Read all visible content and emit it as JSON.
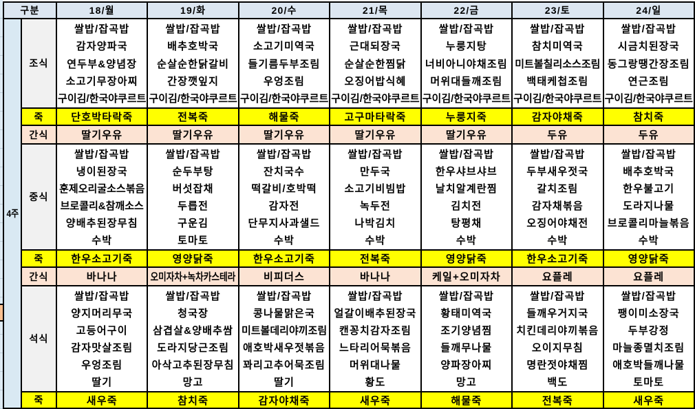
{
  "header": {
    "category_label": "구분",
    "days": [
      "18/월",
      "19/화",
      "20/수",
      "21/목",
      "22/금",
      "23/토",
      "24/일"
    ]
  },
  "week_label": "4주",
  "sections": [
    {
      "label": "조식",
      "items": [
        [
          "쌀밥/잡곡밥",
          "감자양파국",
          "연두부&양념장",
          "소고기무장아찌",
          "구이김/한국야쿠르트"
        ],
        [
          "쌀밥/잡곡밥",
          "배추호박국",
          "순살순한닭갈비",
          "간장깻잎지",
          "구이김/한국야쿠르트"
        ],
        [
          "쌀밥/잡곡밥",
          "소고기미역국",
          "들기름두부조림",
          "우엉조림",
          "구이김/한국야쿠르트"
        ],
        [
          "쌀밥/잡곡밥",
          "근대되장국",
          "순살순한찜닭",
          "오징어밥식혜",
          "구이김/한국야쿠르트"
        ],
        [
          "쌀밥/잡곡밥",
          "누룽지탕",
          "너비아니야채조림",
          "머위대들깨조림",
          "구이김/한국야쿠르트"
        ],
        [
          "쌀밥/잡곡밥",
          "참치미역국",
          "미트볼칠리소스조림",
          "백태케첩조림",
          "구이김/한국야쿠르트"
        ],
        [
          "쌀밥/잡곡밥",
          "시금치된장국",
          "동그랑땡간장조림",
          "연근조림",
          "구이김/한국야쿠르트"
        ]
      ]
    },
    {
      "label": "죽",
      "items": [
        "단호박타락죽",
        "전복죽",
        "해물죽",
        "고구마타락죽",
        "누룽지죽",
        "감자야채죽",
        "참치죽"
      ]
    },
    {
      "label": "간식",
      "items": [
        "딸기우유",
        "딸기우유",
        "딸기우유",
        "딸기우유",
        "딸기우유",
        "두유",
        "두유"
      ]
    },
    {
      "label": "중식",
      "items": [
        [
          "쌀밥/잡곡밥",
          "냉이된장국",
          "훈제오리굴소스볶음",
          "브로콜리&참깨소스",
          "양배추된장무침",
          "수박"
        ],
        [
          "쌀밥/잡곡밥",
          "순두부탕",
          "버섯잡채",
          "두릅전",
          "구운김",
          "토마토"
        ],
        [
          "쌀밥/잡곡밥",
          "잔치국수",
          "떡갈비/호박떡",
          "감자전",
          "단무지사과샐드",
          "수박"
        ],
        [
          "쌀밥/잡곡밥",
          "만두국",
          "소고기비빔밥",
          "녹두전",
          "나박김치",
          "수박"
        ],
        [
          "쌀밥/잡곡밥",
          "한우샤브샤브",
          "날치알계란찜",
          "김치전",
          "탕평채",
          "수박"
        ],
        [
          "쌀밥/잡곡밥",
          "두부새우젓국",
          "갈치조림",
          "감자채볶음",
          "오징어야채전",
          "수박"
        ],
        [
          "쌀밥/잡곡밥",
          "배추호박국",
          "한우불고기",
          "도라지나물",
          "브로콜리마늘볶음",
          "수박"
        ]
      ]
    },
    {
      "label": "죽",
      "items": [
        "한우소고기죽",
        "영양닭죽",
        "한우소고기죽",
        "전복죽",
        "영양닭죽",
        "한우소고기죽",
        "영양닭죽"
      ]
    },
    {
      "label": "간식",
      "items": [
        "바나나",
        "오미자차+녹차카스테라",
        "비피더스",
        "바나나",
        "케일+오미자차",
        "요플레",
        "요플레"
      ]
    },
    {
      "label": "석식",
      "items": [
        [
          "쌀밥/잡곡밥",
          "양지머리무국",
          "고등어구이",
          "감자맛살조림",
          "우엉조림",
          "딸기"
        ],
        [
          "쌀밥/잡곡밥",
          "청국장",
          "삼겹살&양배추쌈",
          "도라지당근조림",
          "아삭고추된장무침",
          "망고"
        ],
        [
          "쌀밥/잡곡밥",
          "콩나물맑은국",
          "미트볼데리야끼조림",
          "애호박새우젓볶음",
          "꽈리고추어묵조림",
          "딸기"
        ],
        [
          "쌀밥/잡곡밥",
          "얼갈이배추된장국",
          "캔꽁치감자조림",
          "느타리어묵볶음",
          "머위대나물",
          "황도"
        ],
        [
          "쌀밥/잡곡밥",
          "황태미역국",
          "조기양념찜",
          "들깨무나물",
          "양파장아찌",
          "망고"
        ],
        [
          "쌀밥/잡곡밥",
          "들깨우거지국",
          "치킨데리야끼볶음",
          "오이지무침",
          "명란젓야채찜",
          "백도"
        ],
        [
          "쌀밥/잡곡밥",
          "팽이미소장국",
          "두부강정",
          "마늘종멸치조림",
          "애호박들깨나물",
          "토마토"
        ]
      ]
    },
    {
      "label": "죽",
      "items": [
        "새우죽",
        "참치죽",
        "감자야채죽",
        "새우죽",
        "해물죽",
        "전복죽",
        "새우죽"
      ]
    }
  ],
  "colors": {
    "header_bg": "#DCE6F1",
    "week_bg": "#D9E9F3",
    "label_bg": "#F1F1F1",
    "porridge_bg": "#FFFF00",
    "snack_bg": "#FCE3D3",
    "border": "#000000",
    "text": "#000000",
    "strip_bg": "#DEEBF4",
    "strip_line": "#BFCFDA",
    "orange_marker": "#FAC090"
  }
}
